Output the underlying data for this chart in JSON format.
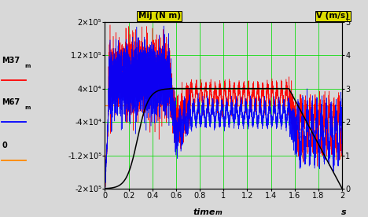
{
  "ylabel_left": "Mij (N m)",
  "ylabel_right": "V (m/s)",
  "ylim_left": [
    -200000,
    200000
  ],
  "ylim_right": [
    0,
    5
  ],
  "xlim": [
    0,
    2
  ],
  "yticks_left": [
    -200000,
    -120000,
    -40000,
    40000,
    120000,
    200000
  ],
  "ytick_labels_left": [
    "-2×10⁵",
    "-1.2×10⁵",
    "-4×10⁴",
    "4×10⁴",
    "1.2×10⁵",
    "2×10⁵"
  ],
  "yticks_right": [
    0,
    1,
    2,
    3,
    4,
    5
  ],
  "xticks": [
    0,
    0.2,
    0.4,
    0.6,
    0.8,
    1.0,
    1.2,
    1.4,
    1.6,
    1.8,
    2.0
  ],
  "grid_color": "#00dd00",
  "background_color": "#d8d8d8",
  "M37_color": "red",
  "M67_color": "blue",
  "velocity_color": "black",
  "zero_line_color": "#ff8800",
  "label_box_color": "#dddd00",
  "label_box_edge": "black"
}
